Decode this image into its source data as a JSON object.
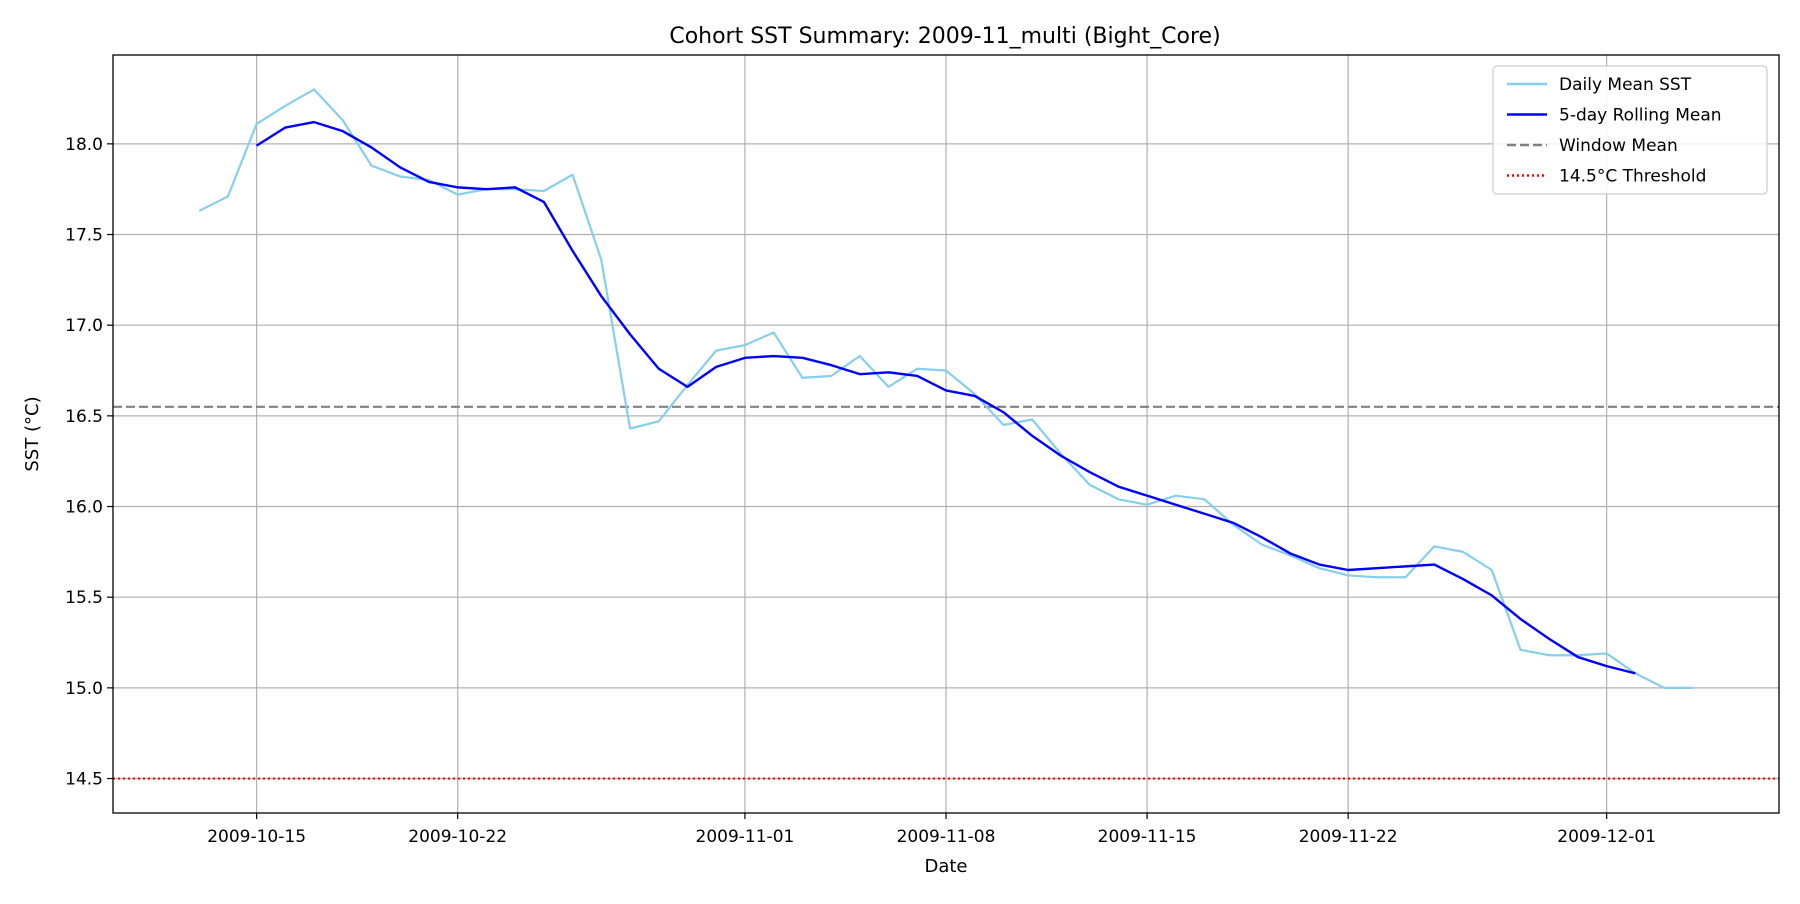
{
  "chart_data": {
    "type": "line",
    "title": "Cohort SST Summary: 2009-11_multi (Bight_Core)",
    "xlabel": "Date",
    "ylabel": "SST (°C)",
    "x_type": "date",
    "xlim": [
      "2009-10-10",
      "2009-12-07"
    ],
    "ylim": [
      14.31,
      18.49
    ],
    "x_ticks": [
      "2009-10-15",
      "2009-10-22",
      "2009-11-01",
      "2009-11-08",
      "2009-11-15",
      "2009-11-22",
      "2009-12-01"
    ],
    "y_ticks": [
      14.5,
      15.0,
      15.5,
      16.0,
      16.5,
      17.0,
      17.5,
      18.0
    ],
    "grid": true,
    "legend_position": "top-right",
    "colors": {
      "daily": "#87ceeb",
      "rolling": "#0000ff",
      "window_mean": "#808080",
      "threshold": "#ff0000"
    },
    "series": [
      {
        "name": "Daily Mean SST",
        "style": "solid",
        "color": "#87ceeb",
        "x": [
          "2009-10-13",
          "2009-10-14",
          "2009-10-15",
          "2009-10-16",
          "2009-10-17",
          "2009-10-18",
          "2009-10-19",
          "2009-10-20",
          "2009-10-21",
          "2009-10-22",
          "2009-10-23",
          "2009-10-24",
          "2009-10-25",
          "2009-10-26",
          "2009-10-27",
          "2009-10-28",
          "2009-10-29",
          "2009-10-30",
          "2009-10-31",
          "2009-11-01",
          "2009-11-02",
          "2009-11-03",
          "2009-11-04",
          "2009-11-05",
          "2009-11-06",
          "2009-11-07",
          "2009-11-08",
          "2009-11-09",
          "2009-11-10",
          "2009-11-11",
          "2009-11-12",
          "2009-11-13",
          "2009-11-14",
          "2009-11-15",
          "2009-11-16",
          "2009-11-17",
          "2009-11-18",
          "2009-11-19",
          "2009-11-20",
          "2009-11-21",
          "2009-11-22",
          "2009-11-23",
          "2009-11-24",
          "2009-11-25",
          "2009-11-26",
          "2009-11-27",
          "2009-11-28",
          "2009-11-29",
          "2009-11-30",
          "2009-12-01",
          "2009-12-02",
          "2009-12-03",
          "2009-12-04"
        ],
        "values": [
          17.63,
          17.71,
          18.11,
          18.21,
          18.3,
          18.13,
          17.88,
          17.82,
          17.8,
          17.72,
          17.75,
          17.75,
          17.74,
          17.83,
          17.36,
          16.43,
          16.47,
          16.67,
          16.86,
          16.89,
          16.96,
          16.71,
          16.72,
          16.83,
          16.66,
          16.76,
          16.75,
          16.62,
          16.45,
          16.48,
          16.29,
          16.12,
          16.04,
          16.01,
          16.06,
          16.04,
          15.9,
          15.79,
          15.73,
          15.66,
          15.62,
          15.61,
          15.61,
          15.78,
          15.75,
          15.65,
          15.21,
          15.18,
          15.18,
          15.19,
          15.08,
          15.0,
          15.0
        ]
      },
      {
        "name": "5-day Rolling Mean",
        "style": "solid",
        "color": "#0000ff",
        "x": [
          "2009-10-15",
          "2009-10-16",
          "2009-10-17",
          "2009-10-18",
          "2009-10-19",
          "2009-10-20",
          "2009-10-21",
          "2009-10-22",
          "2009-10-23",
          "2009-10-24",
          "2009-10-25",
          "2009-10-26",
          "2009-10-27",
          "2009-10-28",
          "2009-10-29",
          "2009-10-30",
          "2009-10-31",
          "2009-11-01",
          "2009-11-02",
          "2009-11-03",
          "2009-11-04",
          "2009-11-05",
          "2009-11-06",
          "2009-11-07",
          "2009-11-08",
          "2009-11-09",
          "2009-11-10",
          "2009-11-11",
          "2009-11-12",
          "2009-11-13",
          "2009-11-14",
          "2009-11-15",
          "2009-11-16",
          "2009-11-17",
          "2009-11-18",
          "2009-11-19",
          "2009-11-20",
          "2009-11-21",
          "2009-11-22",
          "2009-11-23",
          "2009-11-24",
          "2009-11-25",
          "2009-11-26",
          "2009-11-27",
          "2009-11-28",
          "2009-11-29",
          "2009-11-30",
          "2009-12-01",
          "2009-12-02"
        ],
        "values": [
          17.99,
          18.09,
          18.12,
          18.07,
          17.98,
          17.87,
          17.79,
          17.76,
          17.75,
          17.76,
          17.68,
          17.41,
          17.16,
          16.95,
          16.76,
          16.66,
          16.77,
          16.82,
          16.83,
          16.82,
          16.78,
          16.73,
          16.74,
          16.72,
          16.64,
          16.61,
          16.52,
          16.39,
          16.28,
          16.19,
          16.11,
          16.06,
          16.01,
          15.96,
          15.91,
          15.83,
          15.74,
          15.68,
          15.65,
          15.66,
          15.67,
          15.68,
          15.6,
          15.51,
          15.38,
          15.27,
          15.17,
          15.12,
          15.08
        ]
      }
    ],
    "reference_lines": [
      {
        "name": "Window Mean",
        "y": 16.55,
        "style": "dashed",
        "color": "#808080"
      },
      {
        "name": "14.5°C Threshold",
        "y": 14.5,
        "style": "dotted",
        "color": "#ff0000"
      }
    ],
    "legend": [
      "Daily Mean SST",
      "5-day Rolling Mean",
      "Window Mean",
      "14.5°C Threshold"
    ]
  }
}
